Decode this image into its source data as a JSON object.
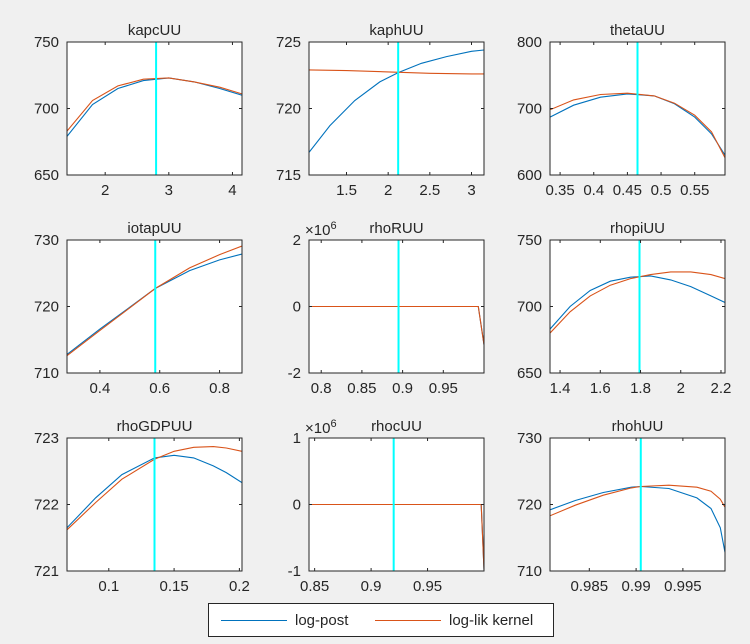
{
  "colors": {
    "log_post": "#0072bd",
    "log_lik": "#d95319",
    "mode_line": "#00ffff",
    "axis": "#262626",
    "background": "#f0f0f0",
    "plot_background": "#ffffff"
  },
  "legend": {
    "items": [
      {
        "label": "log-post",
        "color": "#0072bd"
      },
      {
        "label": "log-lik kernel",
        "color": "#d95319"
      }
    ]
  },
  "chart_data": [
    {
      "type": "line",
      "title": "kapcUU",
      "xlim": [
        1.4,
        4.15
      ],
      "ylim": [
        650,
        750
      ],
      "xticks": [
        2,
        3,
        4
      ],
      "xticklabels": [
        "2",
        "3",
        "4"
      ],
      "yticks": [
        650,
        700,
        750
      ],
      "yticklabels": [
        "650",
        "700",
        "750"
      ],
      "vline": 2.8,
      "grid": false,
      "series": [
        {
          "name": "log-post",
          "x": [
            1.4,
            1.8,
            2.2,
            2.6,
            3.0,
            3.4,
            3.8,
            4.15
          ],
          "y": [
            679,
            703,
            715,
            721,
            723,
            720,
            715,
            710
          ]
        },
        {
          "name": "log-lik kernel",
          "x": [
            1.4,
            1.8,
            2.2,
            2.6,
            3.0,
            3.4,
            3.8,
            4.15
          ],
          "y": [
            683,
            706,
            717,
            722,
            723,
            720,
            716,
            711
          ]
        }
      ]
    },
    {
      "type": "line",
      "title": "kaphUU",
      "xlim": [
        1.05,
        3.15
      ],
      "ylim": [
        715,
        725
      ],
      "xticks": [
        1.5,
        2,
        2.5,
        3
      ],
      "xticklabels": [
        "1.5",
        "2",
        "2.5",
        "3"
      ],
      "yticks": [
        715,
        720,
        725
      ],
      "yticklabels": [
        "715",
        "720",
        "725"
      ],
      "vline": 2.12,
      "grid": false,
      "series": [
        {
          "name": "log-post",
          "x": [
            1.05,
            1.3,
            1.6,
            1.9,
            2.12,
            2.4,
            2.7,
            3.0,
            3.15
          ],
          "y": [
            716.7,
            718.7,
            720.6,
            722.0,
            722.7,
            723.4,
            723.9,
            724.3,
            724.4
          ]
        },
        {
          "name": "log-lik kernel",
          "x": [
            1.05,
            1.5,
            2.0,
            2.5,
            3.0,
            3.15
          ],
          "y": [
            722.9,
            722.85,
            722.75,
            722.65,
            722.6,
            722.6
          ]
        }
      ]
    },
    {
      "type": "line",
      "title": "thetaUU",
      "xlim": [
        0.335,
        0.595
      ],
      "ylim": [
        600,
        800
      ],
      "xticks": [
        0.35,
        0.4,
        0.45,
        0.5,
        0.55
      ],
      "xticklabels": [
        "0.35",
        "0.4",
        "0.45",
        "0.5",
        "0.55"
      ],
      "yticks": [
        600,
        700,
        800
      ],
      "yticklabels": [
        "600",
        "700",
        "800"
      ],
      "vline": 0.465,
      "grid": false,
      "series": [
        {
          "name": "log-post",
          "x": [
            0.335,
            0.37,
            0.41,
            0.45,
            0.49,
            0.52,
            0.55,
            0.575,
            0.595
          ],
          "y": [
            687,
            705,
            717,
            722,
            719,
            707,
            687,
            662,
            630
          ]
        },
        {
          "name": "log-lik kernel",
          "x": [
            0.335,
            0.37,
            0.41,
            0.45,
            0.49,
            0.52,
            0.55,
            0.575,
            0.595
          ],
          "y": [
            698,
            713,
            721,
            723,
            719,
            708,
            690,
            665,
            626
          ]
        }
      ]
    },
    {
      "type": "line",
      "title": "iotapUU",
      "xlim": [
        0.29,
        0.875
      ],
      "ylim": [
        710,
        730
      ],
      "xticks": [
        0.4,
        0.6,
        0.8
      ],
      "xticklabels": [
        "0.4",
        "0.6",
        "0.8"
      ],
      "yticks": [
        710,
        720,
        730
      ],
      "yticklabels": [
        "710",
        "720",
        "730"
      ],
      "vline": 0.585,
      "grid": false,
      "series": [
        {
          "name": "log-post",
          "x": [
            0.29,
            0.4,
            0.5,
            0.585,
            0.7,
            0.8,
            0.875
          ],
          "y": [
            712.8,
            716.6,
            719.9,
            722.7,
            725.4,
            727.0,
            727.9
          ]
        },
        {
          "name": "log-lik kernel",
          "x": [
            0.29,
            0.4,
            0.5,
            0.585,
            0.7,
            0.8,
            0.875
          ],
          "y": [
            712.6,
            716.4,
            719.8,
            722.7,
            725.8,
            727.8,
            729.1
          ]
        }
      ]
    },
    {
      "type": "line",
      "title": "rhoRUU",
      "exponent": "6",
      "xlim": [
        0.785,
        1.0
      ],
      "ylim": [
        -2,
        2
      ],
      "xticks": [
        0.8,
        0.85,
        0.9,
        0.95
      ],
      "xticklabels": [
        "0.8",
        "0.85",
        "0.9",
        "0.95"
      ],
      "yticks": [
        -2,
        0,
        2
      ],
      "yticklabels": [
        "-2",
        "0",
        "2"
      ],
      "vline": 0.895,
      "grid": false,
      "series": [
        {
          "name": "log-post",
          "x": [
            0.785,
            0.99,
            0.993,
            1.0
          ],
          "y": [
            0.0007,
            0.0007,
            0.0,
            -1.15
          ]
        },
        {
          "name": "log-lik kernel",
          "x": [
            0.785,
            0.99,
            0.993,
            1.0
          ],
          "y": [
            0.0007,
            0.0007,
            0.0,
            -1.15
          ]
        }
      ]
    },
    {
      "type": "line",
      "title": "rhopiUU",
      "xlim": [
        1.35,
        2.22
      ],
      "ylim": [
        650,
        750
      ],
      "xticks": [
        1.4,
        1.6,
        1.8,
        2.0,
        2.2
      ],
      "xticklabels": [
        "1.4",
        "1.6",
        "1.8",
        "2",
        "2.2"
      ],
      "yticks": [
        650,
        700,
        750
      ],
      "yticklabels": [
        "650",
        "700",
        "750"
      ],
      "vline": 1.795,
      "grid": false,
      "series": [
        {
          "name": "log-post",
          "x": [
            1.35,
            1.45,
            1.55,
            1.65,
            1.75,
            1.85,
            1.95,
            2.05,
            2.15,
            2.22
          ],
          "y": [
            683,
            700,
            712,
            719,
            722,
            723,
            720,
            715,
            708,
            703
          ]
        },
        {
          "name": "log-lik kernel",
          "x": [
            1.35,
            1.45,
            1.55,
            1.65,
            1.75,
            1.85,
            1.95,
            2.05,
            2.15,
            2.22
          ],
          "y": [
            680,
            696,
            708,
            716,
            721,
            724,
            726,
            726,
            724,
            721
          ]
        }
      ]
    },
    {
      "type": "line",
      "title": "rhoGDPUU",
      "xlim": [
        0.068,
        0.202
      ],
      "ylim": [
        721,
        723
      ],
      "xticks": [
        0.1,
        0.15,
        0.2
      ],
      "xticklabels": [
        "0.1",
        "0.15",
        "0.2"
      ],
      "yticks": [
        721,
        722,
        723
      ],
      "yticklabels": [
        "721",
        "722",
        "723"
      ],
      "vline": 0.135,
      "grid": false,
      "series": [
        {
          "name": "log-post",
          "x": [
            0.068,
            0.09,
            0.11,
            0.135,
            0.15,
            0.165,
            0.18,
            0.19,
            0.202
          ],
          "y": [
            721.65,
            722.1,
            722.45,
            722.7,
            722.74,
            722.7,
            722.58,
            722.48,
            722.33
          ]
        },
        {
          "name": "log-lik kernel",
          "x": [
            0.068,
            0.09,
            0.11,
            0.135,
            0.15,
            0.165,
            0.18,
            0.19,
            0.202
          ],
          "y": [
            721.62,
            722.03,
            722.38,
            722.68,
            722.8,
            722.86,
            722.87,
            722.85,
            722.8
          ]
        }
      ]
    },
    {
      "type": "line",
      "title": "rhocUU",
      "exponent": "6",
      "xlim": [
        0.845,
        1.0
      ],
      "ylim": [
        -1,
        1
      ],
      "xticks": [
        0.85,
        0.9,
        0.95
      ],
      "xticklabels": [
        "0.85",
        "0.9",
        "0.95"
      ],
      "yticks": [
        -1,
        0,
        1
      ],
      "yticklabels": [
        "-1",
        "0",
        "1"
      ],
      "vline": 0.92,
      "grid": false,
      "series": [
        {
          "name": "log-post",
          "x": [
            0.845,
            0.996,
            0.9975,
            1.0
          ],
          "y": [
            0.0007,
            0.0007,
            0.0,
            -0.98
          ]
        },
        {
          "name": "log-lik kernel",
          "x": [
            0.845,
            0.996,
            0.9975,
            1.0
          ],
          "y": [
            0.0007,
            0.0007,
            0.0,
            -0.98
          ]
        }
      ]
    },
    {
      "type": "line",
      "title": "rhohUU",
      "xlim": [
        0.9808,
        0.9995
      ],
      "ylim": [
        710,
        730
      ],
      "xticks": [
        0.985,
        0.99,
        0.995
      ],
      "xticklabels": [
        "0.985",
        "0.99",
        "0.995"
      ],
      "yticks": [
        710,
        720,
        730
      ],
      "yticklabels": [
        "710",
        "720",
        "730"
      ],
      "vline": 0.9905,
      "grid": false,
      "series": [
        {
          "name": "log-post",
          "x": [
            0.9808,
            0.9835,
            0.9865,
            0.9895,
            0.9905,
            0.9935,
            0.9965,
            0.998,
            0.999,
            0.9995
          ],
          "y": [
            719.2,
            720.6,
            721.8,
            722.6,
            722.7,
            722.4,
            721.0,
            719.4,
            716.5,
            712.8
          ]
        },
        {
          "name": "log-lik kernel",
          "x": [
            0.9808,
            0.9835,
            0.9865,
            0.9895,
            0.9905,
            0.9935,
            0.9965,
            0.998,
            0.999,
            0.9995
          ],
          "y": [
            718.3,
            719.9,
            721.4,
            722.5,
            722.7,
            722.9,
            722.6,
            722.0,
            720.8,
            719.6
          ]
        }
      ]
    }
  ]
}
